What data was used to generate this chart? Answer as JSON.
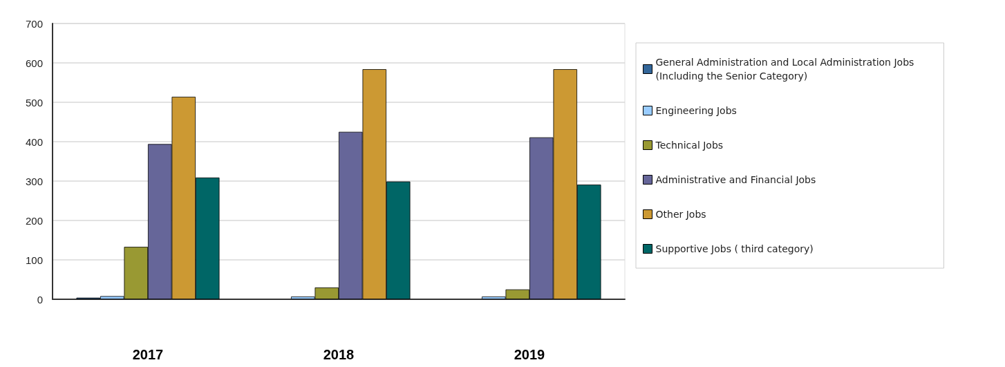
{
  "chart_data": {
    "type": "bar",
    "categories": [
      "2017",
      "2018",
      "2019"
    ],
    "series": [
      {
        "name": "General Administration and Local Administration Jobs (Including the Senior Category)",
        "color": "#336699",
        "values": [
          4,
          0,
          0
        ]
      },
      {
        "name": "Engineering Jobs",
        "color": "#99ccff",
        "values": [
          8,
          7,
          7
        ]
      },
      {
        "name": "Technical Jobs",
        "color": "#999933",
        "values": [
          133,
          30,
          25
        ]
      },
      {
        "name": "Administrative and Financial Jobs",
        "color": "#666699",
        "values": [
          394,
          425,
          411
        ]
      },
      {
        "name": "Other Jobs",
        "color": "#cc9933",
        "values": [
          514,
          584,
          584
        ]
      },
      {
        "name": "Supportive Jobs ( third category)",
        "color": "#006666",
        "values": [
          309,
          299,
          291
        ]
      }
    ],
    "ylim": [
      0,
      700
    ],
    "yticks": [
      0,
      100,
      200,
      300,
      400,
      500,
      600,
      700
    ],
    "grid": "y",
    "legend": "right"
  }
}
